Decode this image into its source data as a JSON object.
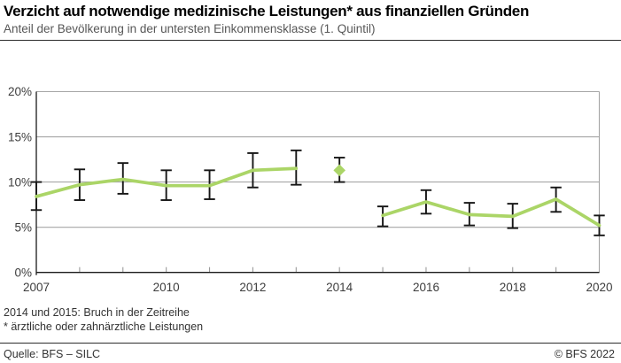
{
  "header": {
    "title": "Verzicht auf notwendige medizinische Leistungen* aus finanziellen Gründen",
    "subtitle": "Anteil der Bevölkerung in der untersten Einkommensklasse (1. Quintil)"
  },
  "chart_data": {
    "type": "line",
    "title": "Verzicht auf notwendige medizinische Leistungen* aus finanziellen Gründen",
    "subtitle": "Anteil der Bevölkerung in der untersten Einkommensklasse (1. Quintil)",
    "xlabel": "",
    "ylabel": "",
    "x": [
      2007,
      2008,
      2009,
      2010,
      2011,
      2012,
      2013,
      2014,
      2015,
      2016,
      2017,
      2018,
      2019,
      2020
    ],
    "series": [
      {
        "name": "Anteil der Bevölkerung (1. Quintil)",
        "values": [
          8.4,
          9.7,
          10.3,
          9.6,
          9.6,
          11.3,
          11.5,
          11.3,
          6.3,
          7.8,
          6.4,
          6.2,
          8.1,
          5.2
        ],
        "ci_low": [
          6.9,
          8.0,
          8.7,
          8.0,
          8.1,
          9.4,
          9.7,
          10.0,
          5.1,
          6.5,
          5.2,
          4.9,
          6.7,
          4.1
        ],
        "ci_high": [
          10.0,
          11.4,
          12.1,
          11.3,
          11.3,
          13.2,
          13.5,
          12.7,
          7.3,
          9.1,
          7.7,
          7.6,
          9.4,
          6.3
        ]
      }
    ],
    "line_segments": [
      [
        2007,
        2013
      ],
      [
        2015,
        2020
      ]
    ],
    "isolated_marker_years": [
      2014
    ],
    "break_note_years": [
      2014,
      2015
    ],
    "ylim": [
      0,
      20
    ],
    "ytick_values": [
      0,
      5,
      10,
      15,
      20
    ],
    "ytick_labels": [
      "0%",
      "5%",
      "10%",
      "15%",
      "20%"
    ],
    "xtick_label_years": [
      2007,
      2010,
      2012,
      2014,
      2016,
      2018,
      2020
    ],
    "grid": true,
    "legend_position": "none",
    "colors": {
      "line": "#abd567",
      "errorbar": "#161616",
      "grid": "#a6a6a6",
      "axis": "#1a1a1a",
      "minor_tick": "#9a9a9a",
      "tick_text": "#3d3d3d"
    }
  },
  "footnotes": [
    "2014 und 2015: Bruch in der Zeitreihe",
    "* ärztliche oder zahnärztliche Leistungen"
  ],
  "footer": {
    "source": "Quelle: BFS – SILC",
    "copyright": "© BFS 2022"
  }
}
